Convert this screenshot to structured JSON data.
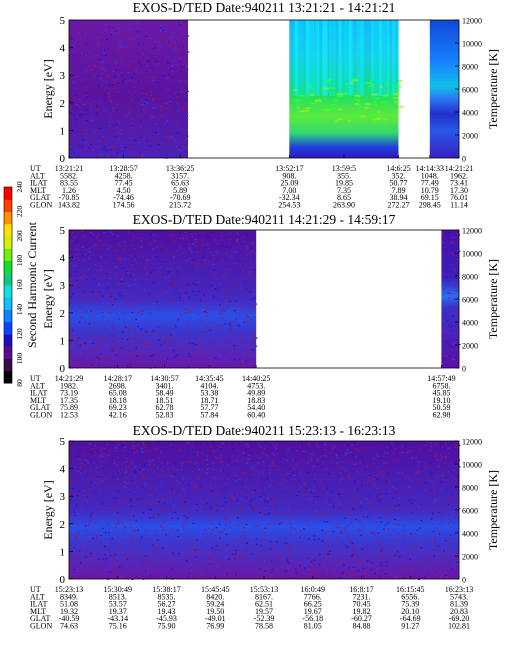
{
  "chart_data": {
    "type": "heatmap",
    "colorbar": {
      "label": "Second Harmonic Current",
      "ticks": [
        "80",
        "100",
        "120",
        "140",
        "160",
        "180",
        "200",
        "220",
        "240"
      ],
      "colors": [
        "#000000",
        "#3a0a4a",
        "#5a0c8c",
        "#1a10c0",
        "#1040ff",
        "#1080ff",
        "#10c0ff",
        "#10e0e0",
        "#10c880",
        "#10e030",
        "#70f010",
        "#d0f010",
        "#ffe000",
        "#ff9000",
        "#ff4000",
        "#ff0000"
      ]
    },
    "panels": [
      {
        "title": "EXOS-D/TED   Date:940211   13:21:21 - 14:21:21",
        "ylabel": "Energy [eV]",
        "y2label": "Temperature [K]",
        "ylim": [
          0,
          5
        ],
        "y2lim": [
          0,
          12000
        ],
        "yticks": [
          "0",
          "1",
          "2",
          "3",
          "4",
          "5"
        ],
        "y2ticks": [
          "0",
          "2000",
          "4000",
          "6000",
          "8000",
          "10000",
          "12000"
        ],
        "segments": [
          {
            "start": 0.0,
            "end": 0.305,
            "style": "noise"
          },
          {
            "start": 0.565,
            "end": 0.845,
            "style": "plasma"
          },
          {
            "start": 0.925,
            "end": 1.0,
            "style": "edge"
          }
        ],
        "table": {
          "labels": [
            "UT",
            "ALT",
            "ILAT",
            "MLT",
            "GLAT",
            "GLON"
          ],
          "columns": [
            {
              "pos": 0.0,
              "values": [
                "13:21:21",
                "5582.",
                "83.55",
                "1.26",
                "-70.85",
                "143.82"
              ]
            },
            {
              "pos": 0.14,
              "values": [
                "13:28:57",
                "4258.",
                "77.45",
                "4.50",
                "-74.46",
                "174.56"
              ]
            },
            {
              "pos": 0.285,
              "values": [
                "13:36:25",
                "3157.",
                "65.63",
                "5.89",
                "-70.69",
                "215.72"
              ]
            },
            {
              "pos": 0.565,
              "values": [
                "13:52:17",
                "908.",
                "25.09",
                "7.00",
                "-32.34",
                "254.53"
              ]
            },
            {
              "pos": 0.705,
              "values": [
                "13:59:5",
                "355.",
                "19.85",
                "7.35",
                "8.65",
                "263.90"
              ]
            },
            {
              "pos": 0.845,
              "values": [
                "14:6:25",
                "352.",
                "50.77",
                "7.89",
                "38.94",
                "272.27"
              ]
            },
            {
              "pos": 0.925,
              "values": [
                "14:14:33",
                "1048.",
                "77.49",
                "10.79",
                "69.15",
                "298.45"
              ]
            },
            {
              "pos": 1.0,
              "values": [
                "14:21:21",
                "1962.",
                "73.41",
                "17.30",
                "76.01",
                "11.14"
              ]
            }
          ]
        }
      },
      {
        "title": "EXOS-D/TED   Date:940211   14:21:29 - 14:59:17",
        "ylabel": "Energy [eV]",
        "y2label": "Temperature [K]",
        "ylim": [
          0,
          5
        ],
        "y2lim": [
          0,
          12000
        ],
        "yticks": [
          "0",
          "1",
          "2",
          "3",
          "4",
          "5"
        ],
        "y2ticks": [
          "0",
          "2000",
          "4000",
          "6000",
          "8000",
          "10000",
          "12000"
        ],
        "segments": [
          {
            "start": 0.0,
            "end": 0.48,
            "style": "band"
          },
          {
            "start": 0.955,
            "end": 1.0,
            "style": "edge2"
          }
        ],
        "table": {
          "labels": [
            "UT",
            "ALT",
            "ILAT",
            "MLT",
            "GLAT",
            "GLON"
          ],
          "columns": [
            {
              "pos": 0.0,
              "values": [
                "14:21:29",
                "1982.",
                "73.19",
                "17.35",
                "75.89",
                "12.53"
              ]
            },
            {
              "pos": 0.125,
              "values": [
                "14:28:17",
                "2698.",
                "65.08",
                "18.18",
                "69.23",
                "42.16"
              ]
            },
            {
              "pos": 0.245,
              "values": [
                "14:30:57",
                "3401.",
                "58.49",
                "18.51",
                "62.78",
                "52.83"
              ]
            },
            {
              "pos": 0.36,
              "values": [
                "14:35:45",
                "4104.",
                "53.38",
                "18.71",
                "57.77",
                "57.84"
              ]
            },
            {
              "pos": 0.48,
              "values": [
                "14:40:25",
                "4753.",
                "49.89",
                "18.83",
                "54.40",
                "60.40"
              ]
            },
            {
              "pos": 0.955,
              "values": [
                "14:57:49",
                "6758.",
                "45.85",
                "19.10",
                "50.59",
                "62.98"
              ]
            }
          ]
        }
      },
      {
        "title": "EXOS-D/TED   Date:940211   15:23:13 - 16:23:13",
        "ylabel": "Energy [eV]",
        "y2label": "Temperature [K]",
        "ylim": [
          0,
          5
        ],
        "y2lim": [
          0,
          12000
        ],
        "yticks": [
          "0",
          "1",
          "2",
          "3",
          "4",
          "5"
        ],
        "y2ticks": [
          "0",
          "2000",
          "4000",
          "6000",
          "8000",
          "10000",
          "12000"
        ],
        "segments": [
          {
            "start": 0.0,
            "end": 1.0,
            "style": "band"
          }
        ],
        "table": {
          "labels": [
            "UT",
            "ALT",
            "ILAT",
            "MLT",
            "GLAT",
            "GLON"
          ],
          "columns": [
            {
              "pos": 0.0,
              "values": [
                "15:23:13",
                "8349.",
                "51.08",
                "19.32",
                "-40.59",
                "74.63"
              ]
            },
            {
              "pos": 0.125,
              "values": [
                "15:30:49",
                "8513.",
                "53.57",
                "19.37",
                "-43.14",
                "75.16"
              ]
            },
            {
              "pos": 0.25,
              "values": [
                "15:38:17",
                "8535.",
                "56.27",
                "19.43",
                "-45.93",
                "75.90"
              ]
            },
            {
              "pos": 0.375,
              "values": [
                "15:45:45",
                "8420.",
                "59.24",
                "19.50",
                "-49.01",
                "76.99"
              ]
            },
            {
              "pos": 0.5,
              "values": [
                "15:53:13",
                "8167.",
                "62.51",
                "19.57",
                "-52.39",
                "78.58"
              ]
            },
            {
              "pos": 0.625,
              "values": [
                "16:0:49",
                "7766.",
                "66.25",
                "19.67",
                "-56.18",
                "81.05"
              ]
            },
            {
              "pos": 0.75,
              "values": [
                "16:8:17",
                "7231.",
                "70.45",
                "19.82",
                "-60.27",
                "84.88"
              ]
            },
            {
              "pos": 0.875,
              "values": [
                "16:15:45",
                "6556.",
                "75.39",
                "20.10",
                "-64.69",
                "91.27"
              ]
            },
            {
              "pos": 1.0,
              "values": [
                "16:23:13",
                "5743.",
                "81.39",
                "20.83",
                "-69.20",
                "102.81"
              ]
            }
          ]
        }
      }
    ]
  }
}
